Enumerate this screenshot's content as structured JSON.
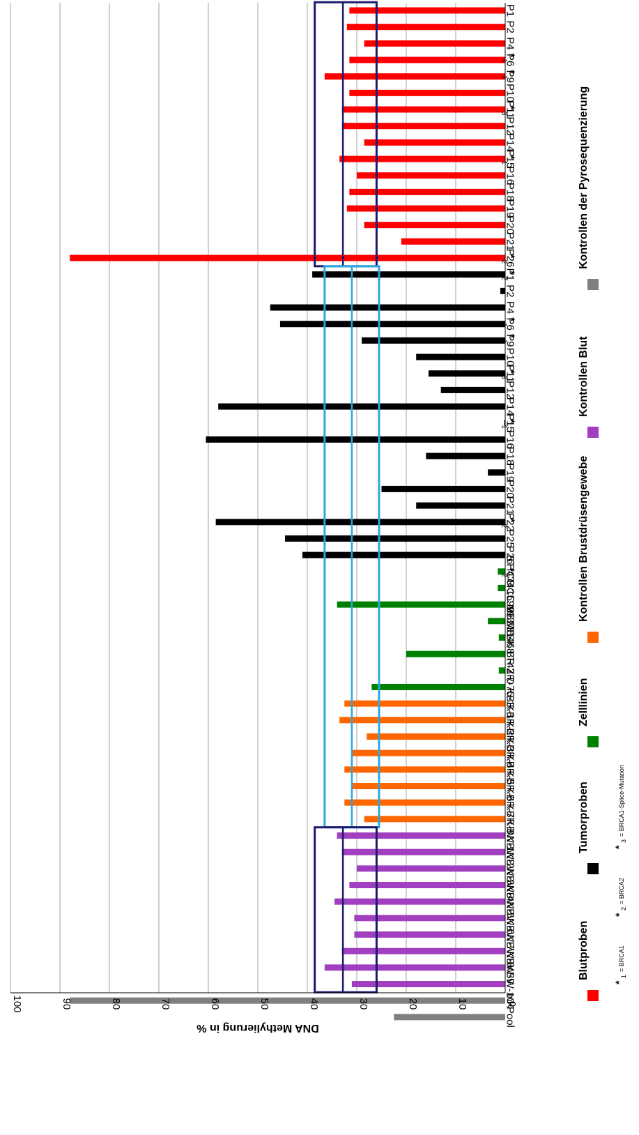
{
  "chart_data": {
    "type": "bar",
    "ylabel": "DNA Methylierung in %",
    "ylim": [
      0,
      100
    ],
    "yticks": [
      0,
      10,
      20,
      30,
      40,
      50,
      60,
      70,
      80,
      90,
      100
    ],
    "grid": true,
    "orientation": "vertical bars, image rotated 90 degrees",
    "categories": [
      {
        "label": "P1",
        "mark": "",
        "value": 31.5,
        "group": "blut"
      },
      {
        "label": "P2",
        "mark": "",
        "value": 32,
        "group": "blut"
      },
      {
        "label": "P4",
        "mark": "1",
        "value": 28.5,
        "group": "blut"
      },
      {
        "label": "P6",
        "mark": "1",
        "value": 31.5,
        "group": "blut"
      },
      {
        "label": "P9",
        "mark": "",
        "value": 36.5,
        "group": "blut"
      },
      {
        "label": "P10",
        "mark": "3",
        "value": 31.5,
        "group": "blut"
      },
      {
        "label": "P11",
        "mark": "",
        "value": 33,
        "group": "blut"
      },
      {
        "label": "P12",
        "mark": "",
        "value": 33,
        "group": "blut"
      },
      {
        "label": "P14",
        "mark": "1",
        "value": 28.5,
        "group": "blut"
      },
      {
        "label": "P15",
        "mark": "",
        "value": 33.5,
        "group": "blut"
      },
      {
        "label": "P16",
        "mark": "",
        "value": 30,
        "group": "blut"
      },
      {
        "label": "P18",
        "mark": "",
        "value": 31.5,
        "group": "blut"
      },
      {
        "label": "P19",
        "mark": "",
        "value": 32,
        "group": "blut"
      },
      {
        "label": "P20",
        "mark": "",
        "value": 28.5,
        "group": "blut"
      },
      {
        "label": "P21",
        "mark": "2",
        "value": 21,
        "group": "blut"
      },
      {
        "label": "P26",
        "mark": "2",
        "value": 88,
        "group": "blut"
      },
      {
        "label": "P1",
        "mark": "",
        "value": 39,
        "group": "tumor"
      },
      {
        "label": "P2",
        "mark": "",
        "value": 1,
        "group": "tumor"
      },
      {
        "label": "P4",
        "mark": "1",
        "value": 47.5,
        "group": "tumor"
      },
      {
        "label": "P6",
        "mark": "1",
        "value": 45.5,
        "group": "tumor"
      },
      {
        "label": "P9",
        "mark": "",
        "value": 29,
        "group": "tumor"
      },
      {
        "label": "P10",
        "mark": "3",
        "value": 18,
        "group": "tumor"
      },
      {
        "label": "P11",
        "mark": "",
        "value": 15.5,
        "group": "tumor"
      },
      {
        "label": "P12",
        "mark": "",
        "value": 13,
        "group": "tumor"
      },
      {
        "label": "P14",
        "mark": "1",
        "value": 58,
        "group": "tumor"
      },
      {
        "label": "P15",
        "mark": "",
        "value": 0.2,
        "group": "tumor"
      },
      {
        "label": "P16",
        "mark": "",
        "value": 60.5,
        "group": "tumor"
      },
      {
        "label": "P18",
        "mark": "",
        "value": 16,
        "group": "tumor"
      },
      {
        "label": "P19",
        "mark": "",
        "value": 3.5,
        "group": "tumor"
      },
      {
        "label": "P20",
        "mark": "",
        "value": 25,
        "group": "tumor"
      },
      {
        "label": "P21",
        "mark": "2",
        "value": 18,
        "group": "tumor"
      },
      {
        "label": "P22",
        "mark": "",
        "value": 58.5,
        "group": "tumor"
      },
      {
        "label": "P25",
        "mark": "",
        "value": 44.5,
        "group": "tumor"
      },
      {
        "label": "P26",
        "mark": "2",
        "value": 41,
        "group": "tumor"
      },
      {
        "label": "BT 474",
        "mark": "",
        "value": 1.5,
        "group": "zell"
      },
      {
        "label": "HCC 1599",
        "mark": "",
        "value": 1.5,
        "group": "zell"
      },
      {
        "label": "HCC 1937",
        "mark": "",
        "value": 34,
        "group": "zell"
      },
      {
        "label": "MB231",
        "mark": "",
        "value": 3.5,
        "group": "zell"
      },
      {
        "label": "MB468",
        "mark": "",
        "value": 1.3,
        "group": "zell"
      },
      {
        "label": "SK BR 3",
        "mark": "",
        "value": 20,
        "group": "zell"
      },
      {
        "label": "T47 D",
        "mark": "",
        "value": 1.3,
        "group": "zell"
      },
      {
        "label": "ZR-75-1",
        "mark": "",
        "value": 27,
        "group": "zell"
      },
      {
        "label": "KBR-1",
        "mark": "",
        "value": 32.5,
        "group": "brust"
      },
      {
        "label": "KBR-2",
        "mark": "",
        "value": 33.5,
        "group": "brust"
      },
      {
        "label": "KBR-3",
        "mark": "",
        "value": 28,
        "group": "brust"
      },
      {
        "label": "KBR-4",
        "mark": "",
        "value": 31,
        "group": "brust"
      },
      {
        "label": "KBR-5",
        "mark": "",
        "value": 32.5,
        "group": "brust"
      },
      {
        "label": "KBR-6",
        "mark": "",
        "value": 31,
        "group": "brust"
      },
      {
        "label": "KBR-7",
        "mark": "",
        "value": 32.5,
        "group": "brust"
      },
      {
        "label": "KBR-8",
        "mark": "",
        "value": 28.5,
        "group": "brust"
      },
      {
        "label": "KBW-1",
        "mark": "",
        "value": 34,
        "group": "kblut"
      },
      {
        "label": "KBW-2",
        "mark": "",
        "value": 33,
        "group": "kblut"
      },
      {
        "label": "KBW-3",
        "mark": "",
        "value": 30,
        "group": "kblut"
      },
      {
        "label": "KBW-4",
        "mark": "",
        "value": 31.5,
        "group": "kblut"
      },
      {
        "label": "KBW-5",
        "mark": "",
        "value": 34.5,
        "group": "kblut"
      },
      {
        "label": "KBW-6",
        "mark": "",
        "value": 30.5,
        "group": "kblut"
      },
      {
        "label": "KBW-7",
        "mark": "",
        "value": 30.5,
        "group": "kblut"
      },
      {
        "label": "KBW-8",
        "mark": "",
        "value": 33,
        "group": "kblut"
      },
      {
        "label": "KBW-9",
        "mark": "",
        "value": 36.5,
        "group": "kblut"
      },
      {
        "label": "KBW-10",
        "mark": "",
        "value": 31,
        "group": "kblut"
      },
      {
        "label": "mK",
        "mark": "",
        "value": 88,
        "group": "pyro"
      },
      {
        "label": "Pool",
        "mark": "",
        "value": 22.5,
        "group": "pyro"
      }
    ],
    "legend": {
      "placement": "bottom (rotated)",
      "entries": [
        {
          "key": "blut",
          "name": "Blutproben",
          "color": "#ff0000"
        },
        {
          "key": "tumor",
          "name": "Tumorproben",
          "color": "#000000"
        },
        {
          "key": "zell",
          "name": "Zelllinien",
          "color": "#008000"
        },
        {
          "key": "brust",
          "name": "Kontrollen Brustdrüsengewebe",
          "color": "#ff6600"
        },
        {
          "key": "kblut",
          "name": "Kontrollen Blut",
          "color": "#a040c0"
        },
        {
          "key": "pyro",
          "name": "Kontrollen der Pyrosequenzierung",
          "color": "#808080"
        }
      ]
    },
    "footnotes": [
      {
        "mark": "1",
        "text": "= BRCA1"
      },
      {
        "mark": "2",
        "text": "= BRCA2"
      },
      {
        "mark": "3",
        "text": "= BRCA1-Splice-Mutation"
      }
    ],
    "ranges": [
      {
        "name": "blut-range",
        "from_index": 0,
        "to_index": 15,
        "low": 26,
        "high": 38.5,
        "mean": 32.8,
        "color": "#1a1a6e"
      },
      {
        "name": "tumor-range",
        "from_index": 16,
        "to_index": 49,
        "low": 25.5,
        "high": 36.5,
        "mean": 31,
        "color": "#29a8e0"
      },
      {
        "name": "kontrolle-blut-range",
        "from_index": 50,
        "to_index": 59,
        "low": 26,
        "high": 38.5,
        "mean": 32.8,
        "color": "#1a1a6e"
      }
    ]
  }
}
